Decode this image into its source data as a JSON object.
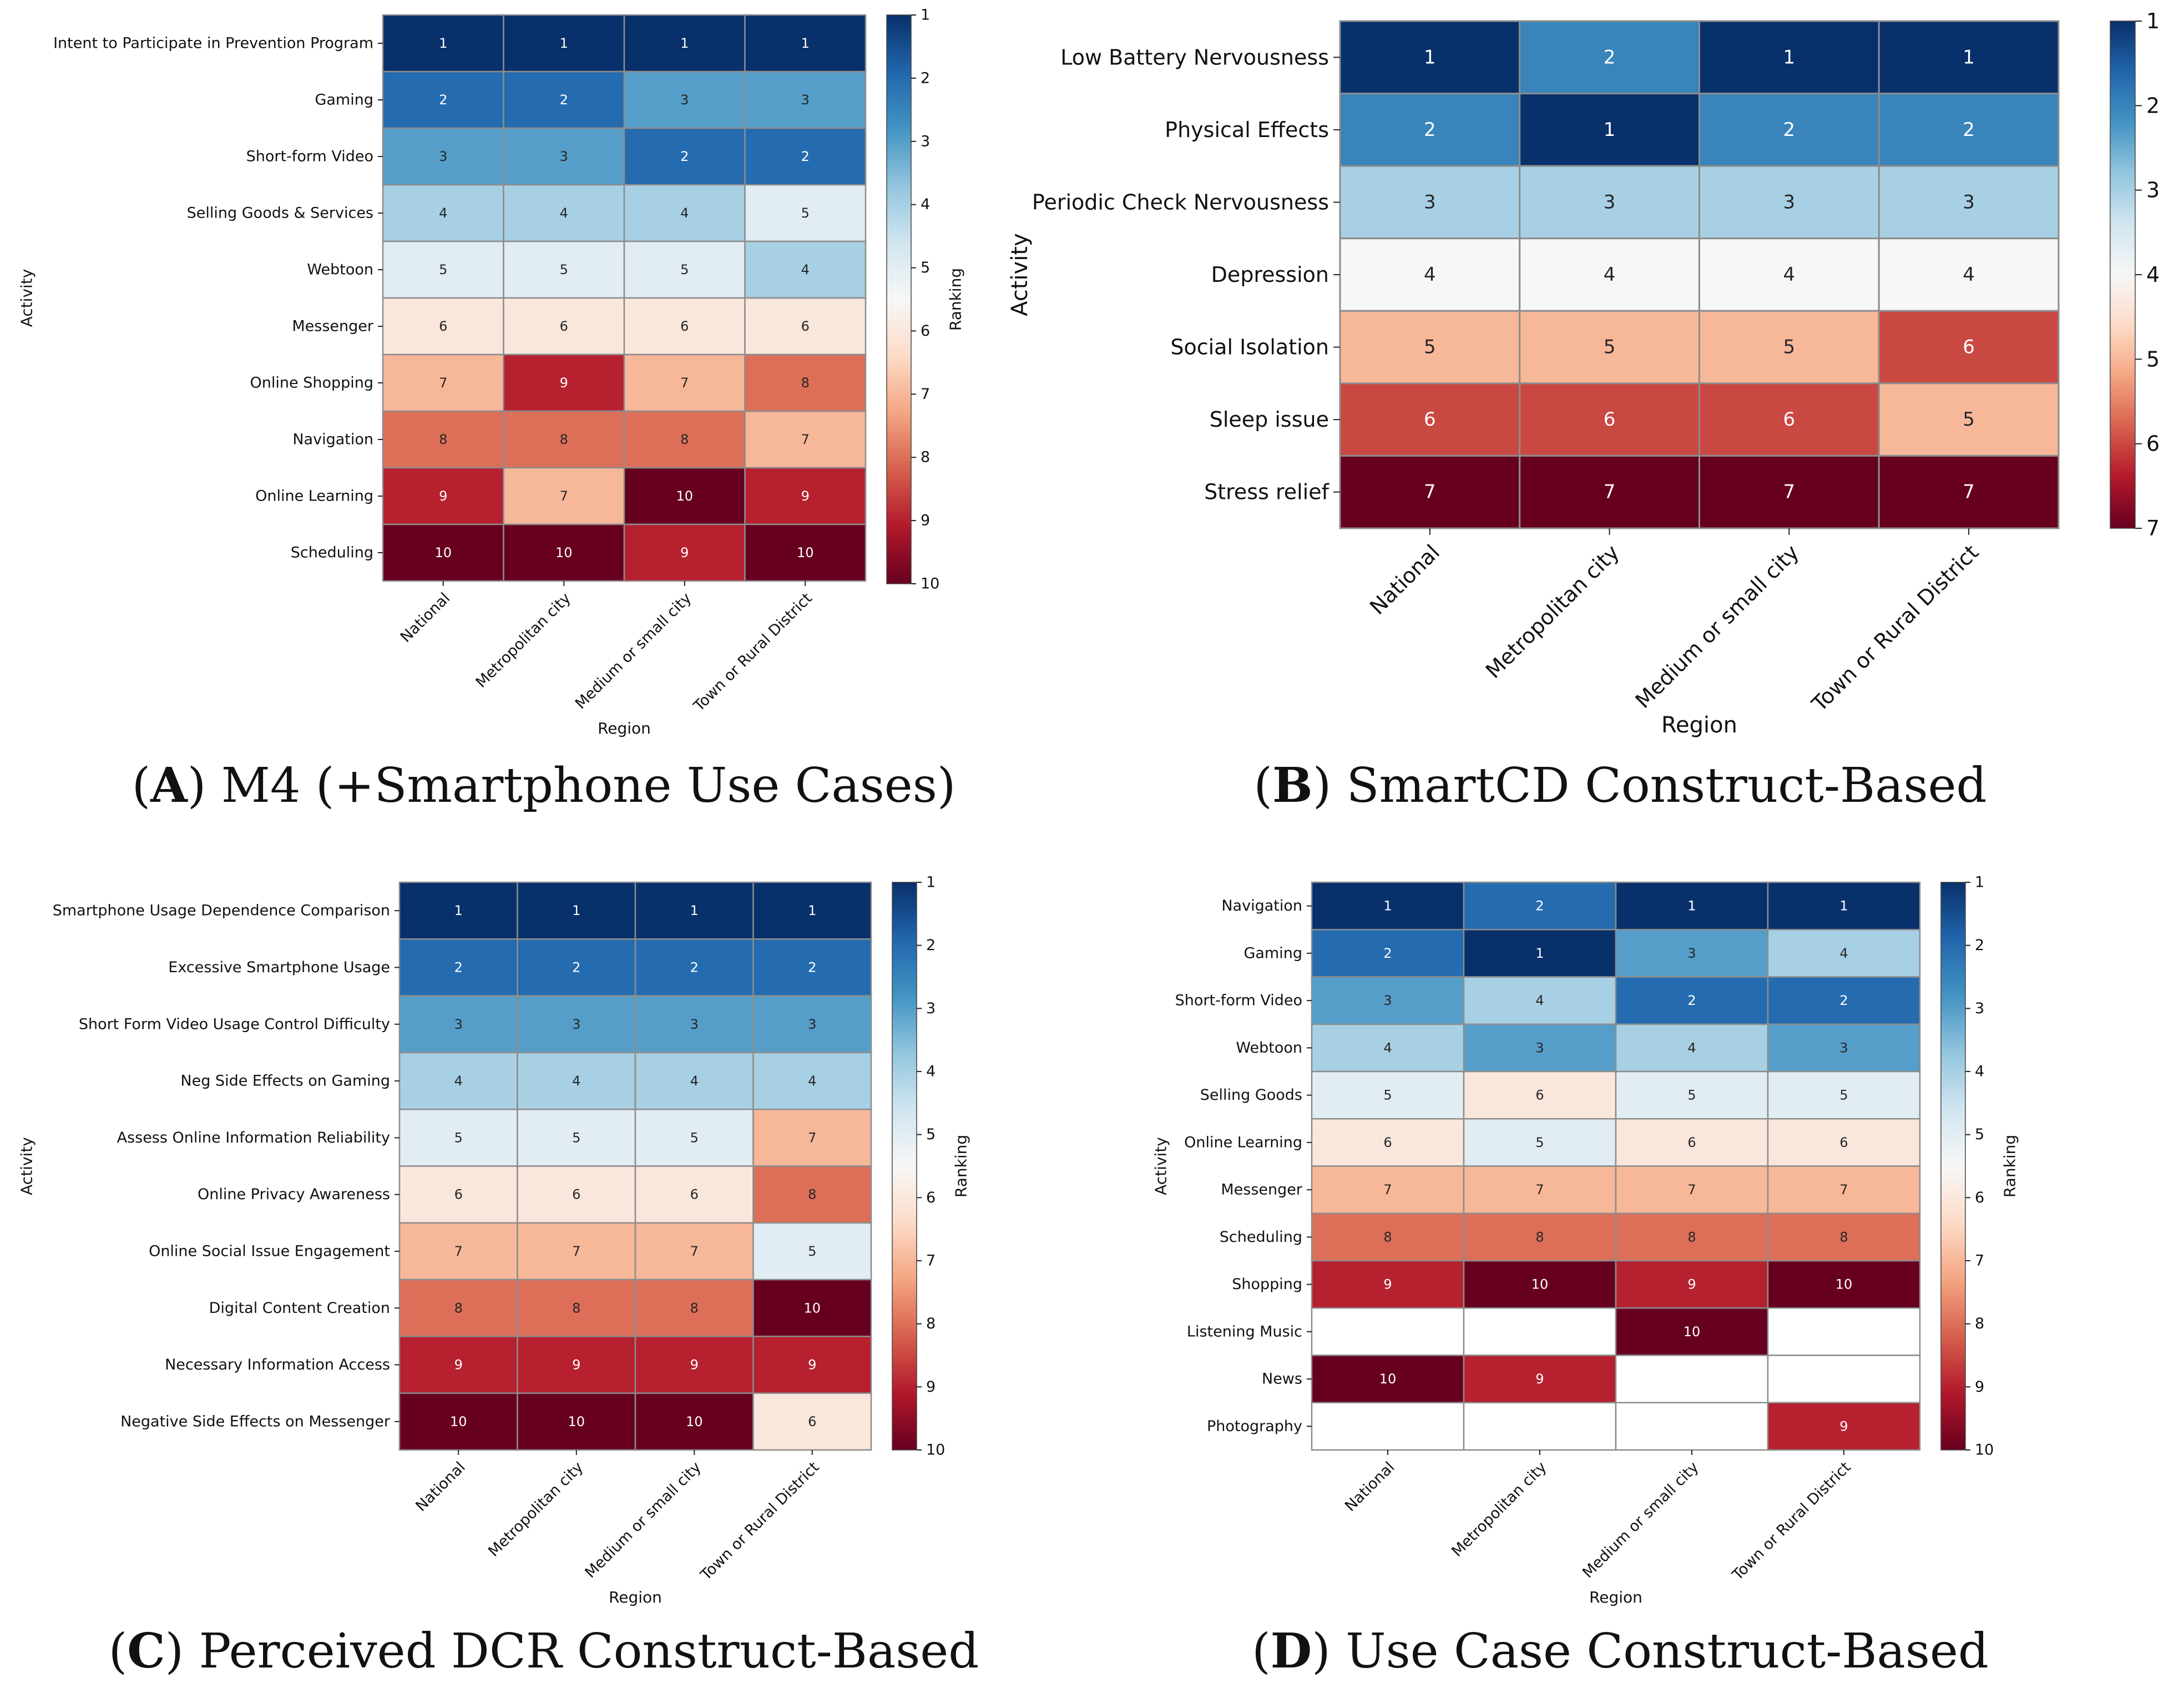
{
  "figure": {
    "panels": [
      "A",
      "B",
      "C",
      "D"
    ]
  },
  "chart_data": [
    {
      "id": "A",
      "type": "heatmap",
      "caption_letter": "A",
      "caption_text": "M4 (+Smartphone Use Cases)",
      "xlabel": "Region",
      "ylabel": "Activity",
      "colorbar_label": "Ranking",
      "vmin": 1,
      "vmax": 10,
      "colorbar_ticks": [
        1,
        2,
        3,
        4,
        5,
        6,
        7,
        8,
        9,
        10
      ],
      "columns": [
        "National",
        "Metropolitan city",
        "Medium or small city",
        "Town or Rural District"
      ],
      "rows": [
        "Intent to Participate in Prevention Program",
        "Gaming",
        "Short-form Video",
        "Selling Goods & Services",
        "Webtoon",
        "Messenger",
        "Online Shopping",
        "Navigation",
        "Online Learning",
        "Scheduling"
      ],
      "values": [
        [
          1,
          1,
          1,
          1
        ],
        [
          2,
          2,
          3,
          3
        ],
        [
          3,
          3,
          2,
          2
        ],
        [
          4,
          4,
          4,
          5
        ],
        [
          5,
          5,
          5,
          4
        ],
        [
          6,
          6,
          6,
          6
        ],
        [
          7,
          9,
          7,
          8
        ],
        [
          8,
          8,
          8,
          7
        ],
        [
          9,
          7,
          10,
          9
        ],
        [
          10,
          10,
          9,
          10
        ]
      ]
    },
    {
      "id": "B",
      "type": "heatmap",
      "caption_letter": "B",
      "caption_text": "SmartCD Construct-Based",
      "xlabel": "Region",
      "ylabel": "Activity",
      "colorbar_label": "Ranking",
      "vmin": 1,
      "vmax": 7,
      "colorbar_ticks": [
        1,
        2,
        3,
        4,
        5,
        6,
        7
      ],
      "columns": [
        "National",
        "Metropolitan city",
        "Medium or small city",
        "Town or Rural District"
      ],
      "rows": [
        "Low Battery Nervousness",
        "Physical Effects",
        "Periodic Check Nervousness",
        "Depression",
        "Social Isolation",
        "Sleep issue",
        "Stress relief"
      ],
      "values": [
        [
          1,
          2,
          1,
          1
        ],
        [
          2,
          1,
          2,
          2
        ],
        [
          3,
          3,
          3,
          3
        ],
        [
          4,
          4,
          4,
          4
        ],
        [
          5,
          5,
          5,
          6
        ],
        [
          6,
          6,
          6,
          5
        ],
        [
          7,
          7,
          7,
          7
        ]
      ]
    },
    {
      "id": "C",
      "type": "heatmap",
      "caption_letter": "C",
      "caption_text": "Perceived DCR Construct-Based",
      "xlabel": "Region",
      "ylabel": "Activity",
      "colorbar_label": "Ranking",
      "vmin": 1,
      "vmax": 10,
      "colorbar_ticks": [
        1,
        2,
        3,
        4,
        5,
        6,
        7,
        8,
        9,
        10
      ],
      "columns": [
        "National",
        "Metropolitan city",
        "Medium or small city",
        "Town or Rural District"
      ],
      "rows": [
        "Smartphone Usage Dependence Comparison",
        "Excessive Smartphone Usage",
        "Short Form Video Usage Control Difficulty",
        "Neg Side Effects on Gaming",
        "Assess Online Information Reliability",
        "Online Privacy Awareness",
        "Online Social Issue Engagement",
        "Digital Content Creation",
        "Necessary Information Access",
        "Negative Side Effects on Messenger"
      ],
      "values": [
        [
          1,
          1,
          1,
          1
        ],
        [
          2,
          2,
          2,
          2
        ],
        [
          3,
          3,
          3,
          3
        ],
        [
          4,
          4,
          4,
          4
        ],
        [
          5,
          5,
          5,
          7
        ],
        [
          6,
          6,
          6,
          8
        ],
        [
          7,
          7,
          7,
          5
        ],
        [
          8,
          8,
          8,
          10
        ],
        [
          9,
          9,
          9,
          9
        ],
        [
          10,
          10,
          10,
          6
        ]
      ]
    },
    {
      "id": "D",
      "type": "heatmap",
      "caption_letter": "D",
      "caption_text": "Use Case Construct-Based",
      "xlabel": "Region",
      "ylabel": "Activity",
      "colorbar_label": "Ranking",
      "vmin": 1,
      "vmax": 10,
      "colorbar_ticks": [
        1,
        2,
        3,
        4,
        5,
        6,
        7,
        8,
        9,
        10
      ],
      "columns": [
        "National",
        "Metropolitan city",
        "Medium or small city",
        "Town or Rural District"
      ],
      "rows": [
        "Navigation",
        "Gaming",
        "Short-form Video",
        "Webtoon",
        "Selling Goods",
        "Online Learning",
        "Messenger",
        "Scheduling",
        "Shopping",
        "Listening Music",
        "News",
        "Photography"
      ],
      "values": [
        [
          1,
          2,
          1,
          1
        ],
        [
          2,
          1,
          3,
          4
        ],
        [
          3,
          4,
          2,
          2
        ],
        [
          4,
          3,
          4,
          3
        ],
        [
          5,
          6,
          5,
          5
        ],
        [
          6,
          5,
          6,
          6
        ],
        [
          7,
          7,
          7,
          7
        ],
        [
          8,
          8,
          8,
          8
        ],
        [
          9,
          10,
          9,
          10
        ],
        [
          null,
          null,
          10,
          null
        ],
        [
          10,
          9,
          null,
          null
        ],
        [
          null,
          null,
          null,
          9
        ]
      ]
    }
  ]
}
